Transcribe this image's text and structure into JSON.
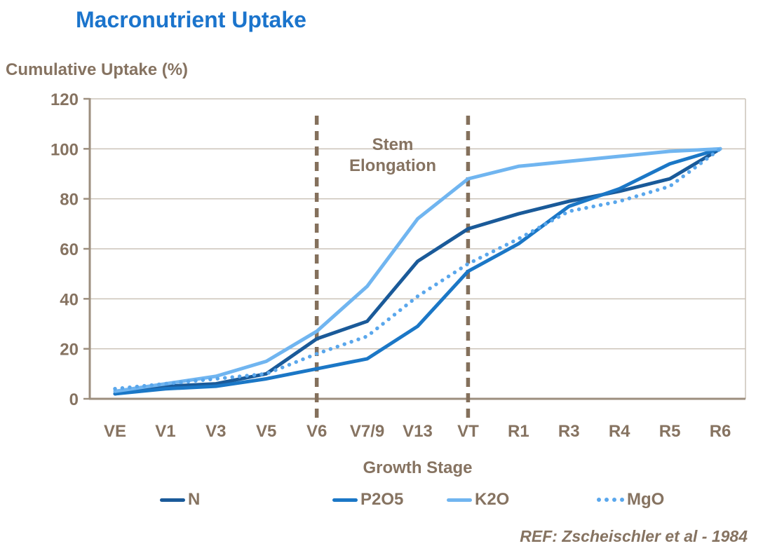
{
  "title": "Macronutrient Uptake",
  "y_axis_title": "Cumulative Uptake (%)",
  "x_axis_title": "Growth Stage",
  "annotation": {
    "line1": "Stem",
    "line2": "Elongation"
  },
  "reference": "REF: Zscheischler  et al - 1984",
  "colors": {
    "title_blue": "#1b74cc",
    "text_brown": "#867361",
    "axis_line": "#9c8e7e",
    "grid_line": "#cbc3b8",
    "dashed_marker": "#84705c",
    "series_n": "#1a5a99",
    "series_p2o5": "#1b77c6",
    "series_k2o": "#70b5f0",
    "series_mgo": "#5aa7ec"
  },
  "chart_data": {
    "type": "line",
    "title": "Macronutrient Uptake",
    "xlabel": "Growth Stage",
    "ylabel": "Cumulative Uptake (%)",
    "ylim": [
      0,
      120
    ],
    "yticks": [
      0,
      20,
      40,
      60,
      80,
      100,
      120
    ],
    "grid": true,
    "legend_position": "bottom",
    "categories": [
      "VE",
      "V1",
      "V3",
      "V5",
      "V6",
      "V7/9",
      "V13",
      "VT",
      "R1",
      "R3",
      "R4",
      "R5",
      "R6"
    ],
    "series": [
      {
        "name": "N",
        "color": "#1a5a99",
        "style": "solid",
        "values": [
          2,
          5,
          6,
          10,
          24,
          31,
          55,
          68,
          74,
          79,
          83,
          88,
          100
        ]
      },
      {
        "name": "P2O5",
        "color": "#1b77c6",
        "style": "solid",
        "values": [
          2,
          4,
          5,
          8,
          12,
          16,
          29,
          51,
          62,
          77,
          84,
          94,
          100
        ]
      },
      {
        "name": "K2O",
        "color": "#70b5f0",
        "style": "solid",
        "values": [
          3,
          6,
          9,
          15,
          27,
          45,
          72,
          88,
          93,
          95,
          97,
          99,
          100
        ]
      },
      {
        "name": "MgO",
        "color": "#5aa7ec",
        "style": "dotted",
        "values": [
          4,
          6,
          8,
          10,
          18,
          25,
          41,
          54,
          64,
          75,
          79,
          85,
          100
        ]
      }
    ],
    "vlines": {
      "at_categories": [
        "V6",
        "VT"
      ],
      "style": "dashed",
      "color": "#84705c"
    },
    "annotations": [
      {
        "text": [
          "Stem",
          "Elongation"
        ],
        "position": "between V6 and VT, near top"
      }
    ],
    "source_note": "REF: Zscheischler  et al - 1984"
  },
  "legend": {
    "items": [
      {
        "label": "N"
      },
      {
        "label": "P2O5"
      },
      {
        "label": "K2O"
      },
      {
        "label": "MgO"
      }
    ]
  }
}
